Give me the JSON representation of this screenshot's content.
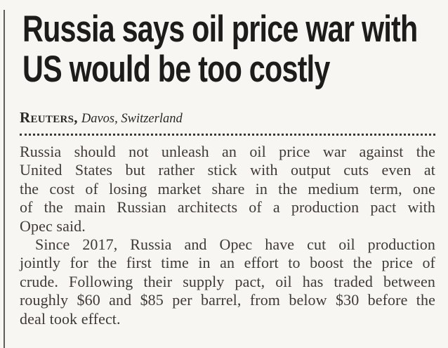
{
  "article": {
    "headline": {
      "line1": "Russia says oil price war with",
      "line2": "US would be too costly"
    },
    "byline": {
      "source": "Reuters,",
      "location": "Davos, Switzerland"
    },
    "body": {
      "para1_lines": [
        "Russia should not unleash an oil price war against the",
        "United States but rather stick with output cuts even at",
        "the cost of losing market share in the medium term, one",
        "of the main Russian architects of a production pact with",
        "Opec said."
      ],
      "para2_lines": [
        "Since 2017, Russia and Opec have cut oil production",
        "jointly for the first time in an effort to boost the price of",
        "crude. Following their supply pact, oil has traded between",
        "roughly $60 and $85 per barrel, from below $30 before the",
        "deal took effect."
      ]
    }
  },
  "colors": {
    "background": "#f7f6f3",
    "headline_text": "#1d1c1a",
    "body_text": "#3e3a36",
    "column_rule": "#605c59",
    "dotted_separator": "#3b3835"
  }
}
